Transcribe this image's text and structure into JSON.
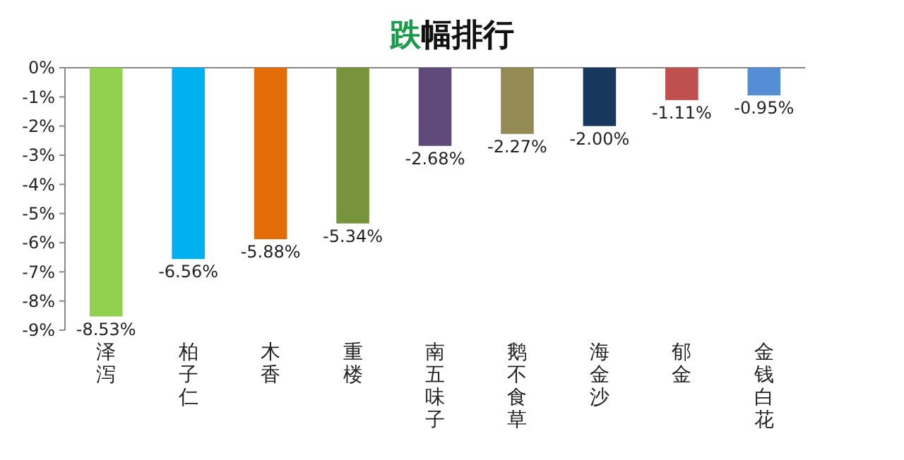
{
  "chart_data": {
    "type": "bar",
    "title": "跌幅排行",
    "categories": [
      "泽泻",
      "柏子仁",
      "木香",
      "重楼",
      "南五味子",
      "鹅不食草",
      "海金沙",
      "郁金",
      "金钱白花"
    ],
    "values": [
      -8.53,
      -6.56,
      -5.88,
      -5.34,
      -2.68,
      -2.27,
      -2.0,
      -1.11,
      -0.95
    ],
    "colors": [
      "#92d050",
      "#00b0f0",
      "#e36c09",
      "#77933c",
      "#604a7b",
      "#948a54",
      "#17375e",
      "#c0504d",
      "#558ed5"
    ],
    "value_labels": [
      "-8.53%",
      "-6.56%",
      "-5.88%",
      "-5.34%",
      "-2.68%",
      "-2.27%",
      "-2.00%",
      "-1.11%",
      "-0.95%"
    ],
    "ylim": [
      -9,
      0
    ],
    "yticks": [
      {
        "value": 0,
        "label": "0%"
      },
      {
        "value": -1,
        "label": "-1%"
      },
      {
        "value": -2,
        "label": "-2%"
      },
      {
        "value": -3,
        "label": "-3%"
      },
      {
        "value": -4,
        "label": "-4%"
      },
      {
        "value": -5,
        "label": "-5%"
      },
      {
        "value": -6,
        "label": "-6%"
      },
      {
        "value": -7,
        "label": "-7%"
      },
      {
        "value": -8,
        "label": "-8%"
      },
      {
        "value": -9,
        "label": "-9%"
      }
    ]
  }
}
